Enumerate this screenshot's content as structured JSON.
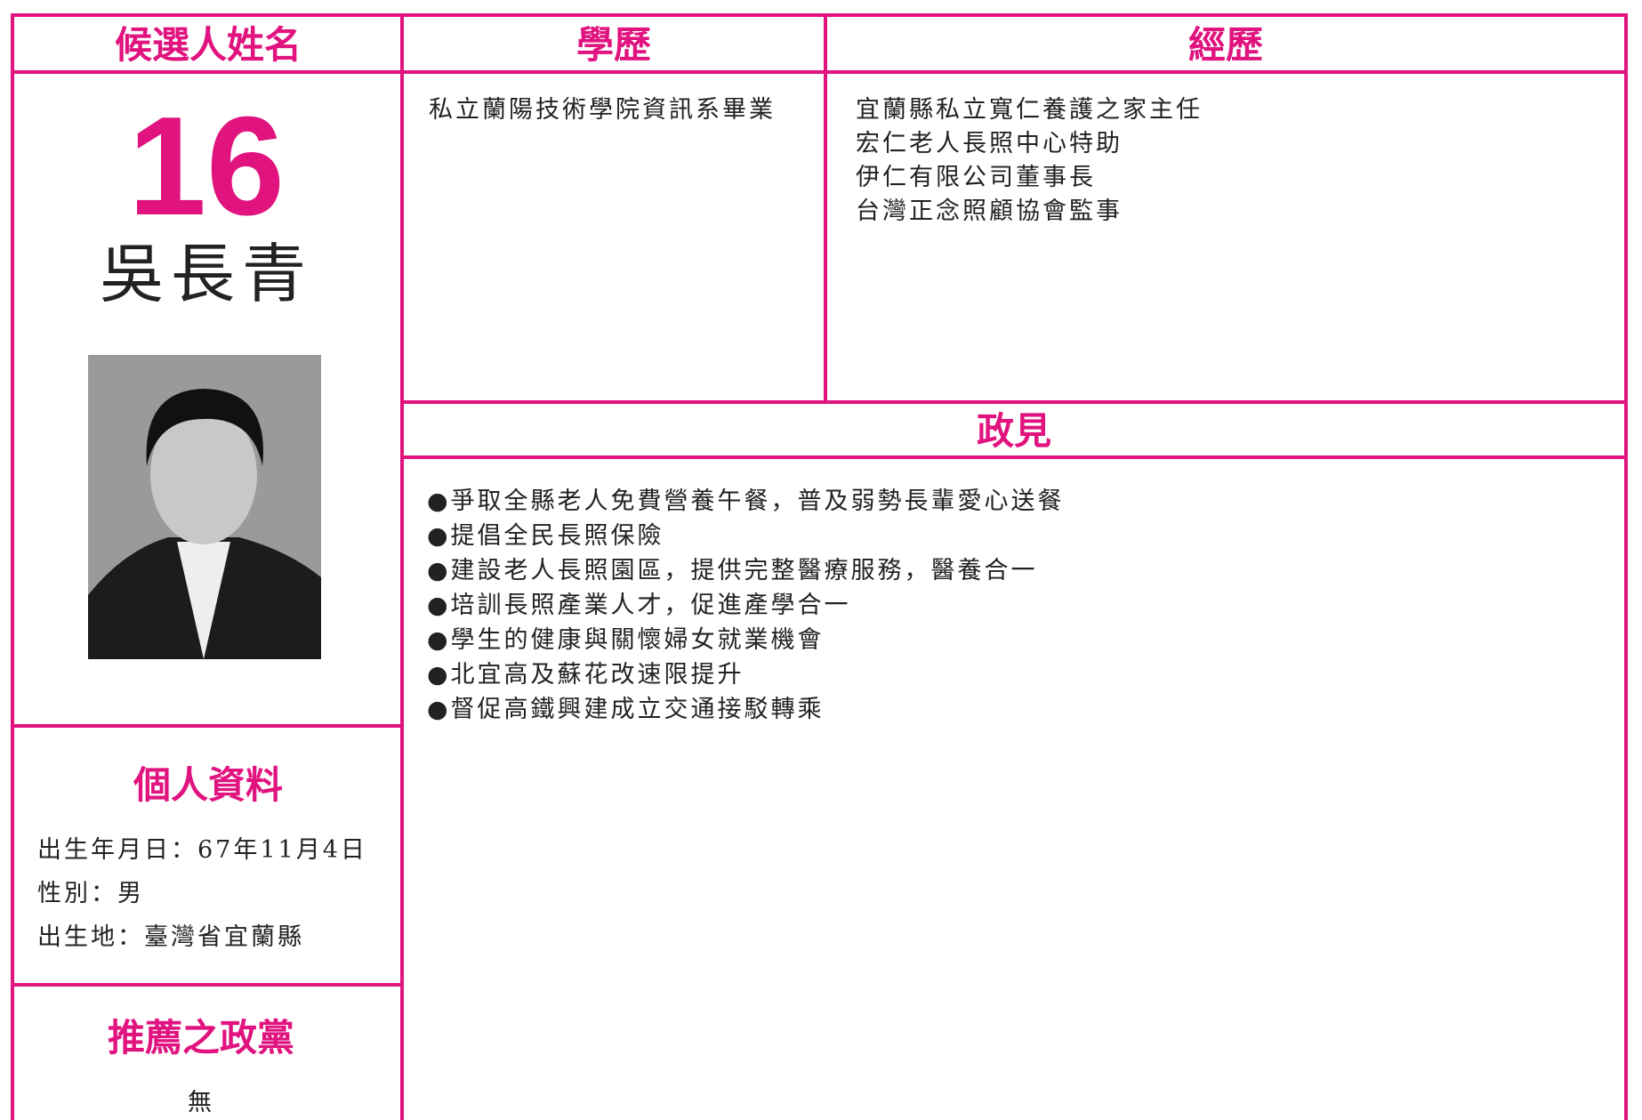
{
  "headers": {
    "name": "候選人姓名",
    "education": "學歷",
    "experience": "經歷",
    "platform": "政見"
  },
  "candidate": {
    "number": "16",
    "name": "吳長青"
  },
  "personal": {
    "title": "個人資料",
    "items": [
      "出生年月日：67年11月4日",
      "性別：男",
      "出生地：臺灣省宜蘭縣"
    ]
  },
  "party": {
    "title": "推薦之政黨",
    "value": "無"
  },
  "education": [
    "私立蘭陽技術學院資訊系畢業"
  ],
  "experience": [
    "宜蘭縣私立寬仁養護之家主任",
    "宏仁老人長照中心特助",
    "伊仁有限公司董事長",
    "台灣正念照顧協會監事"
  ],
  "platform": [
    "●爭取全縣老人免費營養午餐，普及弱勢長輩愛心送餐",
    "●提倡全民長照保險",
    "●建設老人長照園區，提供完整醫療服務，醫養合一",
    "●培訓長照產業人才，促進產學合一",
    "●學生的健康與關懷婦女就業機會",
    "●北宜高及蘇花改速限提升",
    "●督促高鐵興建成立交通接駁轉乘"
  ]
}
